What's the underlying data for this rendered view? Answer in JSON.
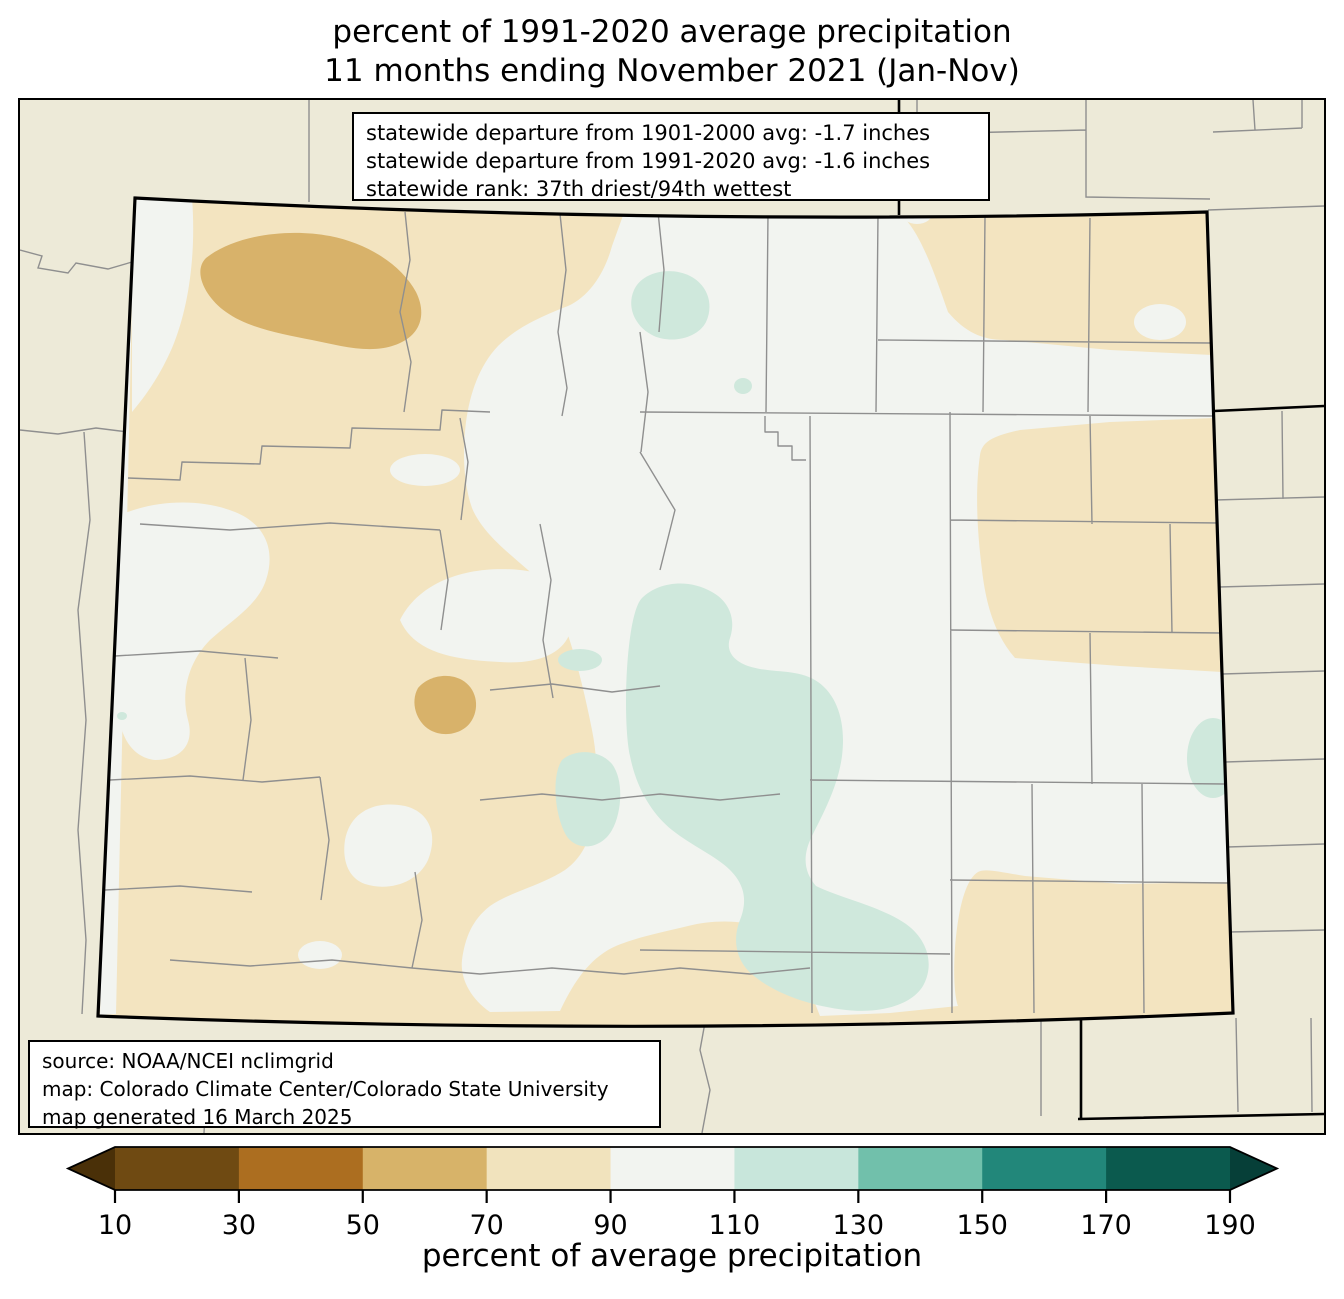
{
  "title": {
    "line1": "percent of 1991-2020 average precipitation",
    "line2": "11 months ending November 2021 (Jan-Nov)"
  },
  "stats_box": {
    "line1": "statewide departure from 1901-2000 avg: -1.7 inches",
    "line2": "statewide departure from 1991-2020 avg: -1.6 inches",
    "line3": "statewide rank: 37th driest/94th wettest"
  },
  "source_box": {
    "line1": "source: NOAA/NCEI nclimgrid",
    "line2": "map: Colorado Climate Center/Colorado State University",
    "line3": "map generated 16 March 2025"
  },
  "colorbar": {
    "caption": "percent of average precipitation",
    "tick_labels": [
      "10",
      "30",
      "50",
      "70",
      "90",
      "110",
      "130",
      "150",
      "170",
      "190"
    ],
    "segment_colors": [
      "#6f4a12",
      "#ac6e20",
      "#d7b369",
      "#f1e3bd",
      "#f2f4f0",
      "#c8e6db",
      "#71c0ab",
      "#22877a",
      "#0b5a4e"
    ],
    "under_color": "#4a3008",
    "over_color": "#063f38"
  },
  "colors": {
    "outside_state": "#edead8",
    "bin_50_70": "#d8b26a",
    "bin_70_90": "#f3e4c0",
    "bin_90_110": "#f2f4f0",
    "bin_110_130": "#cfe8dc",
    "county_line": "#8f8f8f",
    "state_line": "#000000"
  },
  "chart_data": {
    "type": "choropleth-map",
    "region": "Colorado (with surrounding state borders and counties)",
    "variable": "percent of average precipitation",
    "period": "11 months ending November 2021 (Jan-Nov)",
    "baseline": "1991-2020",
    "colorbar_bins": [
      10,
      30,
      50,
      70,
      90,
      110,
      130,
      150,
      170,
      190
    ],
    "statewide_departure_from_1901_2000_avg_inches": -1.7,
    "statewide_departure_from_1991_2020_avg_inches": -1.6,
    "statewide_rank": "37th driest/94th wettest",
    "legend_position": "bottom horizontal colorbar with under/over arrows"
  }
}
